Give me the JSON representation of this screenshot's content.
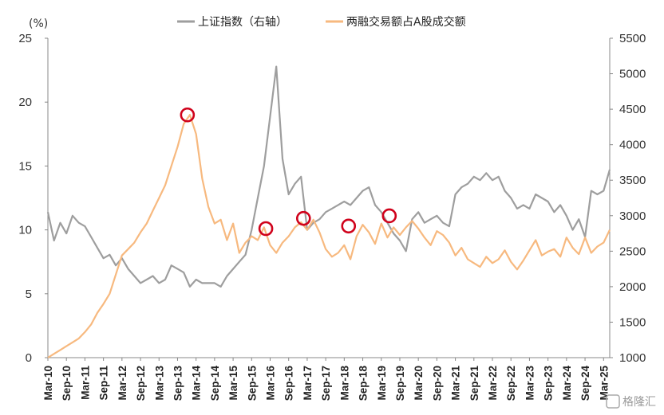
{
  "chart_data": {
    "type": "line",
    "left_unit": "(%)",
    "yleft": {
      "ylim": [
        0,
        25
      ],
      "ticks": [
        "0",
        "5",
        "10",
        "15",
        "20",
        "25"
      ]
    },
    "yright": {
      "ylim": [
        1000,
        5500
      ],
      "ticks": [
        "1000",
        "1500",
        "2000",
        "2500",
        "3000",
        "3500",
        "4000",
        "4500",
        "5000",
        "5500"
      ]
    },
    "x_ticks": [
      "Mar-10",
      "Sep-10",
      "Mar-11",
      "Sep-11",
      "Mar-12",
      "Sep-12",
      "Mar-13",
      "Sep-13",
      "Mar-14",
      "Sep-14",
      "Mar-15",
      "Sep-15",
      "Mar-16",
      "Sep-16",
      "Mar-17",
      "Sep-17",
      "Mar-18",
      "Sep-18",
      "Mar-19",
      "Sep-19",
      "Mar-20",
      "Sep-20",
      "Mar-21",
      "Sep-21",
      "Mar-22",
      "Sep-22",
      "Mar-23",
      "Sep-23",
      "Mar-24",
      "Sep-24",
      "Mar-25"
    ],
    "series": [
      {
        "name": "上证指数（右轴）",
        "axis": "right",
        "color": "#9e9e9e",
        "points": [
          [
            0,
            3050
          ],
          [
            1,
            2650
          ],
          [
            2,
            2900
          ],
          [
            3,
            2750
          ],
          [
            4,
            3000
          ],
          [
            5,
            2900
          ],
          [
            6,
            2850
          ],
          [
            7,
            2700
          ],
          [
            8,
            2550
          ],
          [
            9,
            2400
          ],
          [
            10,
            2450
          ],
          [
            11,
            2300
          ],
          [
            12,
            2400
          ],
          [
            13,
            2250
          ],
          [
            14,
            2150
          ],
          [
            15,
            2050
          ],
          [
            16,
            2100
          ],
          [
            17,
            2150
          ],
          [
            18,
            2050
          ],
          [
            19,
            2100
          ],
          [
            20,
            2300
          ],
          [
            21,
            2250
          ],
          [
            22,
            2200
          ],
          [
            23,
            2000
          ],
          [
            24,
            2100
          ],
          [
            25,
            2050
          ],
          [
            26,
            2050
          ],
          [
            27,
            2050
          ],
          [
            28,
            2000
          ],
          [
            29,
            2150
          ],
          [
            30,
            2250
          ],
          [
            31,
            2350
          ],
          [
            32,
            2450
          ],
          [
            33,
            2800
          ],
          [
            34,
            3250
          ],
          [
            35,
            3700
          ],
          [
            36,
            4400
          ],
          [
            37,
            5100
          ],
          [
            38,
            3800
          ],
          [
            39,
            3300
          ],
          [
            40,
            3450
          ],
          [
            41,
            3550
          ],
          [
            42,
            2800
          ],
          [
            43,
            2900
          ],
          [
            44,
            2950
          ],
          [
            45,
            3050
          ],
          [
            46,
            3100
          ],
          [
            47,
            3150
          ],
          [
            48,
            3200
          ],
          [
            49,
            3150
          ],
          [
            50,
            3250
          ],
          [
            51,
            3350
          ],
          [
            52,
            3400
          ],
          [
            53,
            3150
          ],
          [
            54,
            3050
          ],
          [
            55,
            2900
          ],
          [
            56,
            2750
          ],
          [
            57,
            2650
          ],
          [
            58,
            2500
          ],
          [
            59,
            2950
          ],
          [
            60,
            3050
          ],
          [
            61,
            2900
          ],
          [
            62,
            2950
          ],
          [
            63,
            3000
          ],
          [
            64,
            2900
          ],
          [
            65,
            2850
          ],
          [
            66,
            3300
          ],
          [
            67,
            3400
          ],
          [
            68,
            3450
          ],
          [
            69,
            3550
          ],
          [
            70,
            3500
          ],
          [
            71,
            3600
          ],
          [
            72,
            3500
          ],
          [
            73,
            3550
          ],
          [
            74,
            3350
          ],
          [
            75,
            3250
          ],
          [
            76,
            3100
          ],
          [
            77,
            3150
          ],
          [
            78,
            3100
          ],
          [
            79,
            3300
          ],
          [
            80,
            3250
          ],
          [
            81,
            3200
          ],
          [
            82,
            3050
          ],
          [
            83,
            3150
          ],
          [
            84,
            3000
          ],
          [
            85,
            2800
          ],
          [
            86,
            2950
          ],
          [
            87,
            2700
          ],
          [
            88,
            3350
          ],
          [
            89,
            3300
          ],
          [
            90,
            3350
          ],
          [
            91,
            3650
          ]
        ]
      },
      {
        "name": "两融交易额占A股成交额",
        "axis": "left",
        "color": "#f7b97f",
        "points": [
          [
            0,
            0
          ],
          [
            1,
            0.3
          ],
          [
            2,
            0.6
          ],
          [
            3,
            0.9
          ],
          [
            4,
            1.2
          ],
          [
            5,
            1.5
          ],
          [
            6,
            2.0
          ],
          [
            7,
            2.6
          ],
          [
            8,
            3.5
          ],
          [
            9,
            4.2
          ],
          [
            10,
            5.0
          ],
          [
            11,
            6.5
          ],
          [
            12,
            8.0
          ],
          [
            13,
            8.5
          ],
          [
            14,
            9.0
          ],
          [
            15,
            9.8
          ],
          [
            16,
            10.5
          ],
          [
            17,
            11.5
          ],
          [
            18,
            12.5
          ],
          [
            19,
            13.5
          ],
          [
            20,
            15.0
          ],
          [
            21,
            16.5
          ],
          [
            22,
            18.3
          ],
          [
            23,
            19.0
          ],
          [
            24,
            17.5
          ],
          [
            25,
            14.0
          ],
          [
            26,
            11.8
          ],
          [
            27,
            10.5
          ],
          [
            28,
            10.8
          ],
          [
            29,
            9.2
          ],
          [
            30,
            10.5
          ],
          [
            31,
            8.2
          ],
          [
            32,
            9.0
          ],
          [
            33,
            9.5
          ],
          [
            34,
            9.2
          ],
          [
            35,
            10.2
          ],
          [
            36,
            8.8
          ],
          [
            37,
            8.2
          ],
          [
            38,
            9.0
          ],
          [
            39,
            9.5
          ],
          [
            40,
            10.2
          ],
          [
            41,
            10.6
          ],
          [
            42,
            10.0
          ],
          [
            43,
            10.8
          ],
          [
            44,
            9.8
          ],
          [
            45,
            8.5
          ],
          [
            46,
            7.9
          ],
          [
            47,
            8.2
          ],
          [
            48,
            8.8
          ],
          [
            49,
            7.7
          ],
          [
            50,
            9.5
          ],
          [
            51,
            10.4
          ],
          [
            52,
            9.8
          ],
          [
            53,
            8.9
          ],
          [
            54,
            10.5
          ],
          [
            55,
            9.4
          ],
          [
            56,
            10.2
          ],
          [
            57,
            9.6
          ],
          [
            58,
            10.2
          ],
          [
            59,
            10.7
          ],
          [
            60,
            10.1
          ],
          [
            61,
            9.4
          ],
          [
            62,
            8.8
          ],
          [
            63,
            9.9
          ],
          [
            64,
            9.6
          ],
          [
            65,
            9.0
          ],
          [
            66,
            8.0
          ],
          [
            67,
            8.6
          ],
          [
            68,
            7.7
          ],
          [
            69,
            7.4
          ],
          [
            70,
            7.1
          ],
          [
            71,
            7.9
          ],
          [
            72,
            7.4
          ],
          [
            73,
            7.7
          ],
          [
            74,
            8.4
          ],
          [
            75,
            7.5
          ],
          [
            76,
            6.9
          ],
          [
            77,
            7.6
          ],
          [
            78,
            8.4
          ],
          [
            79,
            9.2
          ],
          [
            80,
            8.0
          ],
          [
            81,
            8.3
          ],
          [
            82,
            8.5
          ],
          [
            83,
            7.9
          ],
          [
            84,
            9.4
          ],
          [
            85,
            8.6
          ],
          [
            86,
            8.1
          ],
          [
            87,
            9.4
          ],
          [
            88,
            8.2
          ],
          [
            89,
            8.7
          ],
          [
            90,
            9.0
          ],
          [
            91,
            10.0
          ]
        ]
      }
    ],
    "highlights": [
      {
        "x": 22.6,
        "y": 19.0
      },
      {
        "x": 35.3,
        "y": 10.1
      },
      {
        "x": 41.4,
        "y": 10.9
      },
      {
        "x": 48.7,
        "y": 10.3
      },
      {
        "x": 55.3,
        "y": 11.1
      }
    ],
    "highlight_color": "#d0021b",
    "grid": false,
    "legend": "top-center"
  },
  "watermark": "格隆汇"
}
